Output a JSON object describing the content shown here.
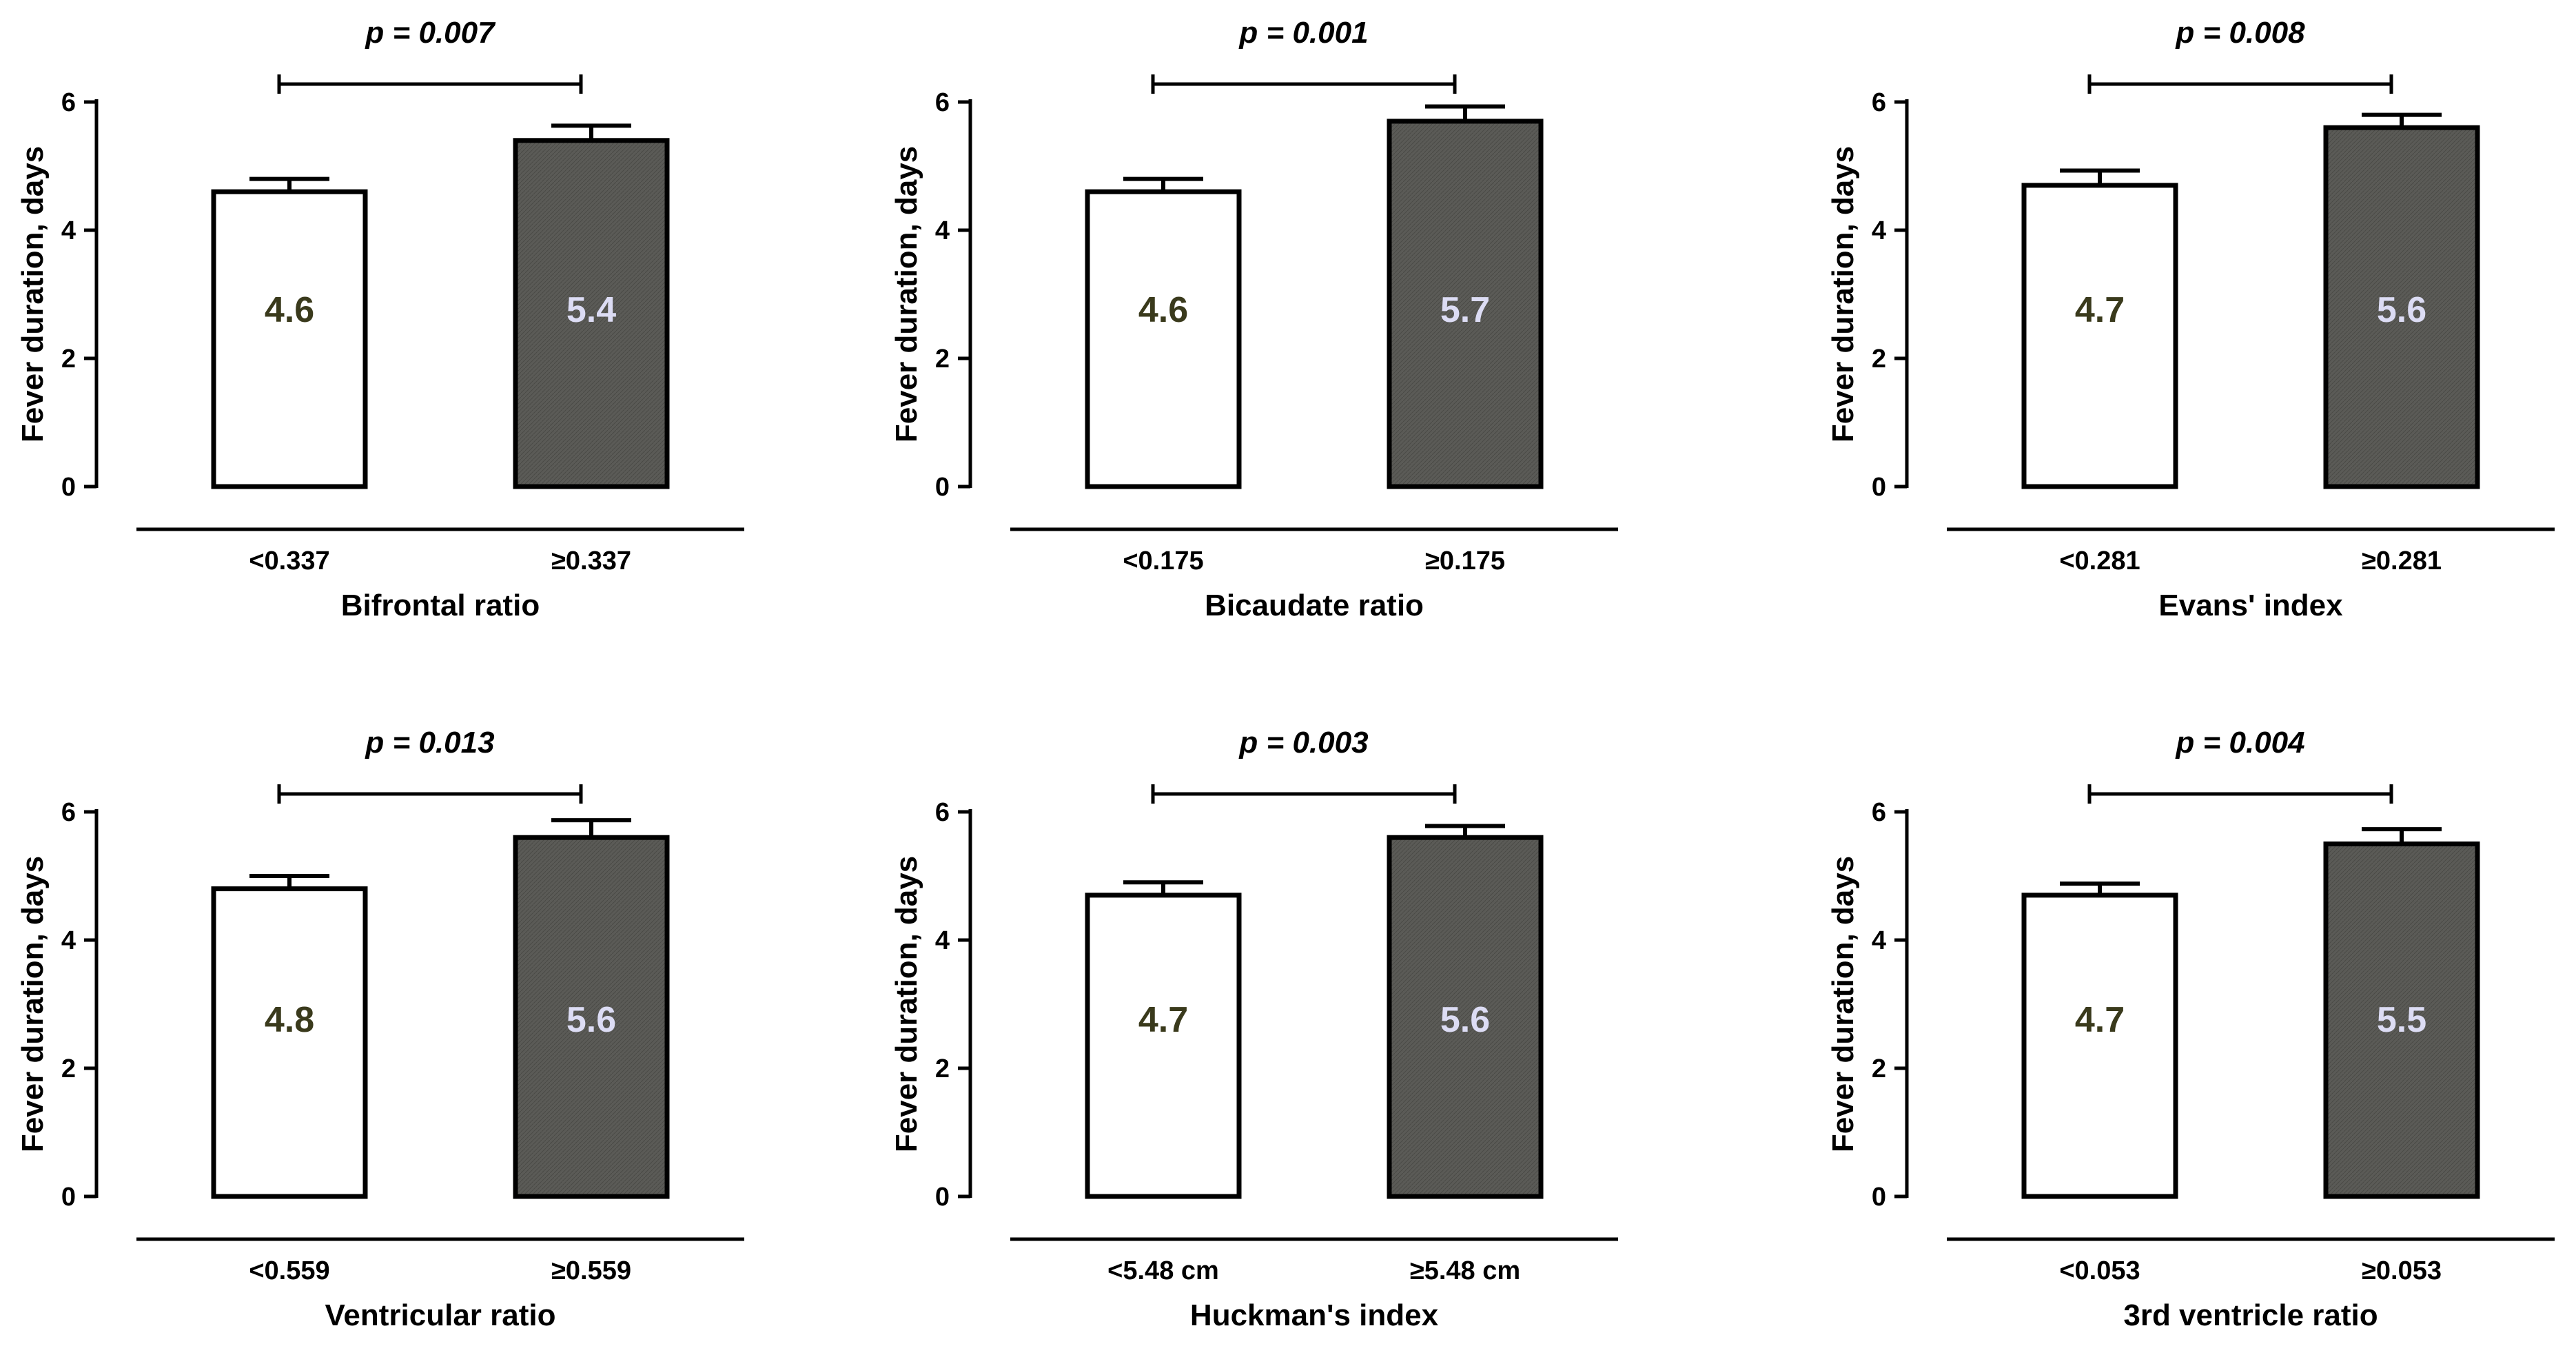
{
  "colors": {
    "bar_low": "#ffffff",
    "bar_high": "#5b5b57",
    "label_low": "#3a3a1c",
    "label_high": "#dcdcf4"
  },
  "chart_data": [
    {
      "type": "bar",
      "title": "",
      "xlabel": "Bifrontal ratio",
      "ylabel": "Fever duration, days",
      "ylim": [
        0,
        6
      ],
      "yticks": [
        "0",
        "2",
        "4",
        "6"
      ],
      "categories": [
        "<0.337",
        "≥0.337"
      ],
      "values": [
        4.6,
        5.4
      ],
      "value_labels": [
        "4.6",
        "5.4"
      ],
      "error_upper": [
        4.8,
        5.63
      ],
      "p_text": "p = 0.007"
    },
    {
      "type": "bar",
      "title": "",
      "xlabel": "Bicaudate ratio",
      "ylabel": "Fever duration, days",
      "ylim": [
        0,
        6
      ],
      "yticks": [
        "0",
        "2",
        "4",
        "6"
      ],
      "categories": [
        "<0.175",
        "≥0.175"
      ],
      "values": [
        4.6,
        5.7
      ],
      "value_labels": [
        "4.6",
        "5.7"
      ],
      "error_upper": [
        4.8,
        5.93
      ],
      "p_text": "p = 0.001"
    },
    {
      "type": "bar",
      "title": "",
      "xlabel": "Evans' index",
      "ylabel": "Fever duration, days",
      "ylim": [
        0,
        6
      ],
      "yticks": [
        "0",
        "2",
        "4",
        "6"
      ],
      "categories": [
        "<0.281",
        "≥0.281"
      ],
      "values": [
        4.7,
        5.6
      ],
      "value_labels": [
        "4.7",
        "5.6"
      ],
      "error_upper": [
        4.93,
        5.8
      ],
      "p_text": "p = 0.008"
    },
    {
      "type": "bar",
      "title": "",
      "xlabel": "Ventricular ratio",
      "ylabel": "Fever duration, days",
      "ylim": [
        0,
        6
      ],
      "yticks": [
        "0",
        "2",
        "4",
        "6"
      ],
      "categories": [
        "<0.559",
        "≥0.559"
      ],
      "values": [
        4.8,
        5.6
      ],
      "value_labels": [
        "4.8",
        "5.6"
      ],
      "error_upper": [
        5.0,
        5.87
      ],
      "p_text": "p = 0.013"
    },
    {
      "type": "bar",
      "title": "",
      "xlabel": "Huckman's index",
      "ylabel": "Fever duration, days",
      "ylim": [
        0,
        6
      ],
      "yticks": [
        "0",
        "2",
        "4",
        "6"
      ],
      "categories": [
        "<5.48 cm",
        "≥5.48 cm"
      ],
      "values": [
        4.7,
        5.6
      ],
      "value_labels": [
        "4.7",
        "5.6"
      ],
      "error_upper": [
        4.9,
        5.78
      ],
      "p_text": "p = 0.003"
    },
    {
      "type": "bar",
      "title": "",
      "xlabel": "3rd ventricle ratio",
      "ylabel": "Fever duration, days",
      "ylim": [
        0,
        6
      ],
      "yticks": [
        "0",
        "2",
        "4",
        "6"
      ],
      "categories": [
        "<0.053",
        "≥0.053"
      ],
      "values": [
        4.7,
        5.5
      ],
      "value_labels": [
        "4.7",
        "5.5"
      ],
      "error_upper": [
        4.88,
        5.73
      ],
      "p_text": "p = 0.004"
    }
  ]
}
